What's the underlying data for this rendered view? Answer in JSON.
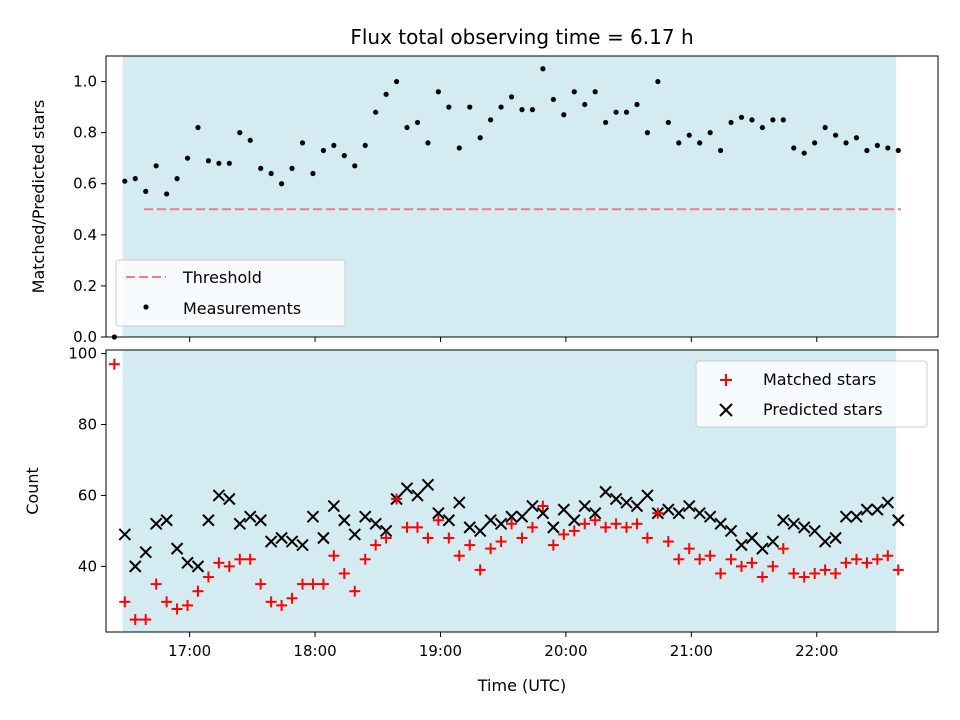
{
  "chart_data": [
    {
      "type": "scatter",
      "title": "Flux total observing time = 6.17 h",
      "xlabel": "",
      "ylabel": "Matched/Predicted stars",
      "xlim": [
        "16:20",
        "22:58"
      ],
      "ylim": [
        0.0,
        1.1
      ],
      "yticks": [
        "0.0",
        "0.2",
        "0.4",
        "0.6",
        "0.8",
        "1.0"
      ],
      "legend_position": "lower-left",
      "observing_window": [
        "16:28",
        "22:38"
      ],
      "threshold": {
        "name": "Threshold",
        "value": 0.5,
        "color": "#f08080"
      },
      "series": [
        {
          "name": "Measurements",
          "color": "#000000",
          "x": [
            "16:24",
            "16:29",
            "16:34",
            "16:39",
            "16:44",
            "16:49",
            "16:54",
            "16:59",
            "17:04",
            "17:09",
            "17:14",
            "17:19",
            "17:24",
            "17:29",
            "17:34",
            "17:39",
            "17:44",
            "17:49",
            "17:54",
            "17:59",
            "18:04",
            "18:09",
            "18:14",
            "18:19",
            "18:24",
            "18:29",
            "18:34",
            "18:39",
            "18:44",
            "18:49",
            "18:54",
            "18:59",
            "19:04",
            "19:09",
            "19:14",
            "19:19",
            "19:24",
            "19:29",
            "19:34",
            "19:39",
            "19:44",
            "19:49",
            "19:54",
            "19:59",
            "20:04",
            "20:09",
            "20:14",
            "20:19",
            "20:24",
            "20:29",
            "20:34",
            "20:39",
            "20:44",
            "20:49",
            "20:54",
            "20:59",
            "21:04",
            "21:09",
            "21:14",
            "21:19",
            "21:24",
            "21:29",
            "21:34",
            "21:39",
            "21:44",
            "21:49",
            "21:54",
            "21:59",
            "22:04",
            "22:09",
            "22:14",
            "22:19",
            "22:24",
            "22:29",
            "22:34",
            "22:39"
          ],
          "values": [
            0.0,
            0.61,
            0.62,
            0.57,
            0.67,
            0.56,
            0.62,
            0.7,
            0.82,
            0.69,
            0.68,
            0.68,
            0.8,
            0.77,
            0.66,
            0.64,
            0.6,
            0.66,
            0.76,
            0.64,
            0.73,
            0.75,
            0.71,
            0.67,
            0.75,
            0.88,
            0.95,
            1.0,
            0.82,
            0.84,
            0.76,
            0.96,
            0.9,
            0.74,
            0.9,
            0.78,
            0.85,
            0.9,
            0.94,
            0.89,
            0.89,
            1.05,
            0.93,
            0.87,
            0.96,
            0.91,
            0.96,
            0.84,
            0.88,
            0.88,
            0.91,
            0.8,
            1.0,
            0.84,
            0.76,
            0.79,
            0.76,
            0.8,
            0.73,
            0.84,
            0.86,
            0.85,
            0.82,
            0.85,
            0.85,
            0.74,
            0.72,
            0.76,
            0.82,
            0.79,
            0.76,
            0.78,
            0.73,
            0.75,
            0.74,
            0.73
          ]
        }
      ]
    },
    {
      "type": "scatter",
      "title": "",
      "xlabel": "Time (UTC)",
      "ylabel": "Count",
      "xlim": [
        "16:20",
        "22:58"
      ],
      "ylim": [
        21.5,
        101.0
      ],
      "yticks": [
        "40",
        "60",
        "80",
        "100"
      ],
      "xticks": [
        "17:00",
        "18:00",
        "19:00",
        "20:00",
        "21:00",
        "22:00"
      ],
      "legend_position": "upper-right",
      "observing_window": [
        "16:28",
        "22:38"
      ],
      "series": [
        {
          "name": "Matched stars",
          "marker": "plus",
          "color": "#ff0000",
          "x": [
            "16:24",
            "16:29",
            "16:34",
            "16:39",
            "16:44",
            "16:49",
            "16:54",
            "16:59",
            "17:04",
            "17:09",
            "17:14",
            "17:19",
            "17:24",
            "17:29",
            "17:34",
            "17:39",
            "17:44",
            "17:49",
            "17:54",
            "17:59",
            "18:04",
            "18:09",
            "18:14",
            "18:19",
            "18:24",
            "18:29",
            "18:34",
            "18:39",
            "18:44",
            "18:49",
            "18:54",
            "18:59",
            "19:04",
            "19:09",
            "19:14",
            "19:19",
            "19:24",
            "19:29",
            "19:34",
            "19:39",
            "19:44",
            "19:49",
            "19:54",
            "19:59",
            "20:04",
            "20:09",
            "20:14",
            "20:19",
            "20:24",
            "20:29",
            "20:34",
            "20:39",
            "20:44",
            "20:49",
            "20:54",
            "20:59",
            "21:04",
            "21:09",
            "21:14",
            "21:19",
            "21:24",
            "21:29",
            "21:34",
            "21:39",
            "21:44",
            "21:49",
            "21:54",
            "21:59",
            "22:04",
            "22:09",
            "22:14",
            "22:19",
            "22:24",
            "22:29",
            "22:34",
            "22:39"
          ],
          "values": [
            97,
            30,
            25,
            25,
            35,
            30,
            28,
            29,
            33,
            37,
            41,
            40,
            42,
            42,
            35,
            30,
            29,
            31,
            35,
            35,
            35,
            43,
            38,
            33,
            42,
            46,
            48,
            59,
            51,
            51,
            48,
            53,
            48,
            43,
            46,
            39,
            45,
            47,
            52,
            48,
            51,
            57,
            46,
            49,
            50,
            52,
            53,
            51,
            52,
            51,
            52,
            48,
            55,
            47,
            42,
            45,
            42,
            43,
            38,
            42,
            40,
            41,
            37,
            40,
            45,
            38,
            37,
            38,
            39,
            38,
            41,
            42,
            41,
            42,
            43,
            39
          ]
        },
        {
          "name": "Predicted stars",
          "marker": "cross",
          "color": "#000000",
          "x": [
            "16:29",
            "16:34",
            "16:39",
            "16:44",
            "16:49",
            "16:54",
            "16:59",
            "17:04",
            "17:09",
            "17:14",
            "17:19",
            "17:24",
            "17:29",
            "17:34",
            "17:39",
            "17:44",
            "17:49",
            "17:54",
            "17:59",
            "18:04",
            "18:09",
            "18:14",
            "18:19",
            "18:24",
            "18:29",
            "18:34",
            "18:39",
            "18:44",
            "18:49",
            "18:54",
            "18:59",
            "19:04",
            "19:09",
            "19:14",
            "19:19",
            "19:24",
            "19:29",
            "19:34",
            "19:39",
            "19:44",
            "19:49",
            "19:54",
            "19:59",
            "20:04",
            "20:09",
            "20:14",
            "20:19",
            "20:24",
            "20:29",
            "20:34",
            "20:39",
            "20:44",
            "20:49",
            "20:54",
            "20:59",
            "21:04",
            "21:09",
            "21:14",
            "21:19",
            "21:24",
            "21:29",
            "21:34",
            "21:39",
            "21:44",
            "21:49",
            "21:54",
            "21:59",
            "22:04",
            "22:09",
            "22:14",
            "22:19",
            "22:24",
            "22:29",
            "22:34",
            "22:39"
          ],
          "values": [
            49,
            40,
            44,
            52,
            53,
            45,
            41,
            40,
            53,
            60,
            59,
            52,
            54,
            53,
            47,
            48,
            47,
            46,
            54,
            48,
            57,
            53,
            49,
            54,
            52,
            50,
            59,
            62,
            60,
            63,
            55,
            53,
            58,
            51,
            50,
            53,
            52,
            54,
            54,
            57,
            55,
            51,
            56,
            53,
            57,
            55,
            61,
            59,
            58,
            57,
            60,
            55,
            56,
            55,
            57,
            55,
            54,
            52,
            50,
            46,
            48,
            45,
            47,
            53,
            52,
            51,
            50,
            47,
            48,
            54,
            54,
            56,
            56,
            58,
            53
          ]
        }
      ]
    }
  ]
}
